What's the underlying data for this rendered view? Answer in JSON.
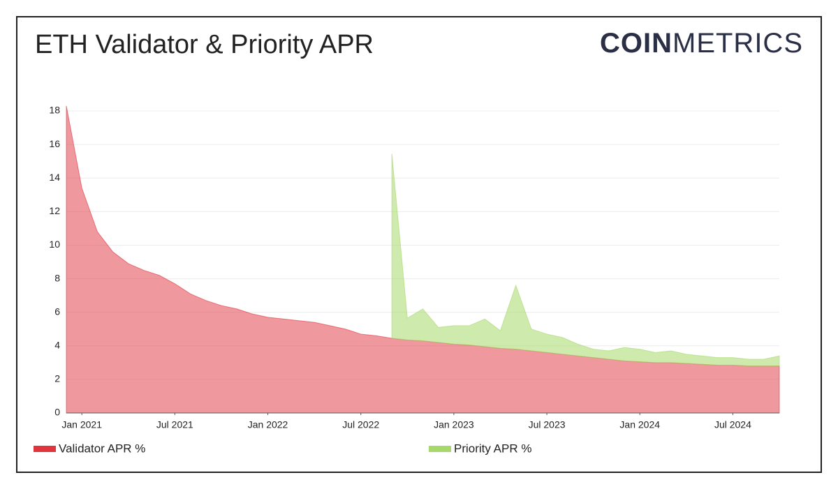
{
  "branding": {
    "logo_bold": "COIN",
    "logo_light": "METRICS"
  },
  "chart_data": {
    "type": "stacked_area",
    "title": "ETH Validator & Priority APR",
    "x": [
      "2020-12",
      "2021-01",
      "2021-02",
      "2021-03",
      "2021-04",
      "2021-05",
      "2021-06",
      "2021-07",
      "2021-08",
      "2021-09",
      "2021-10",
      "2021-11",
      "2021-12",
      "2022-01",
      "2022-02",
      "2022-03",
      "2022-04",
      "2022-05",
      "2022-06",
      "2022-07",
      "2022-08",
      "2022-09",
      "2022-10",
      "2022-11",
      "2022-12",
      "2023-01",
      "2023-02",
      "2023-03",
      "2023-04",
      "2023-05",
      "2023-06",
      "2023-07",
      "2023-08",
      "2023-09",
      "2023-10",
      "2023-11",
      "2023-12",
      "2024-01",
      "2024-02",
      "2024-03",
      "2024-04",
      "2024-05",
      "2024-06",
      "2024-07",
      "2024-08",
      "2024-09",
      "2024-10"
    ],
    "series": [
      {
        "name": "Validator APR %",
        "color": "#e0343f",
        "values": [
          18.3,
          13.4,
          10.8,
          9.6,
          8.9,
          8.5,
          8.2,
          7.7,
          7.1,
          6.7,
          6.4,
          6.2,
          5.9,
          5.7,
          5.6,
          5.5,
          5.4,
          5.2,
          5.0,
          4.7,
          4.6,
          4.45,
          4.35,
          4.3,
          4.2,
          4.1,
          4.05,
          3.95,
          3.85,
          3.8,
          3.7,
          3.6,
          3.5,
          3.4,
          3.3,
          3.2,
          3.1,
          3.05,
          3.0,
          3.0,
          2.95,
          2.9,
          2.85,
          2.85,
          2.8,
          2.8,
          2.8
        ]
      },
      {
        "name": "Priority APR %",
        "color": "#a6d96a",
        "values": [
          null,
          null,
          null,
          null,
          null,
          null,
          null,
          null,
          null,
          null,
          null,
          null,
          null,
          null,
          null,
          null,
          null,
          null,
          null,
          null,
          null,
          11.0,
          1.3,
          1.9,
          0.9,
          1.1,
          1.15,
          1.65,
          1.05,
          3.8,
          1.3,
          1.1,
          1.0,
          0.7,
          0.5,
          0.5,
          0.8,
          0.75,
          0.6,
          0.7,
          0.55,
          0.5,
          0.45,
          0.45,
          0.4,
          0.4,
          0.6
        ]
      }
    ],
    "ylim": [
      0,
      18.5
    ],
    "yticks": [
      0,
      2,
      4,
      6,
      8,
      10,
      12,
      14,
      16,
      18
    ],
    "xticks": [
      {
        "value": "2021-01",
        "label": "Jan 2021"
      },
      {
        "value": "2021-07",
        "label": "Jul 2021"
      },
      {
        "value": "2022-01",
        "label": "Jan 2022"
      },
      {
        "value": "2022-07",
        "label": "Jul 2022"
      },
      {
        "value": "2023-01",
        "label": "Jan 2023"
      },
      {
        "value": "2023-07",
        "label": "Jul 2023"
      },
      {
        "value": "2024-01",
        "label": "Jan 2024"
      },
      {
        "value": "2024-07",
        "label": "Jul 2024"
      }
    ],
    "grid": true,
    "legend": "bottom"
  }
}
